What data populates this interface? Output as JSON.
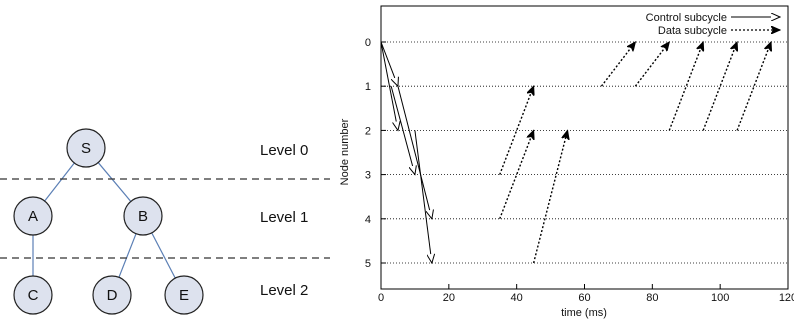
{
  "tree": {
    "nodes": [
      {
        "id": "S",
        "label": "S"
      },
      {
        "id": "A",
        "label": "A"
      },
      {
        "id": "B",
        "label": "B"
      },
      {
        "id": "C",
        "label": "C"
      },
      {
        "id": "D",
        "label": "D"
      },
      {
        "id": "E",
        "label": "E"
      }
    ],
    "edges": [
      [
        "S",
        "A"
      ],
      [
        "S",
        "B"
      ],
      [
        "A",
        "C"
      ],
      [
        "B",
        "D"
      ],
      [
        "B",
        "E"
      ]
    ],
    "levels": [
      "Level 0",
      "Level 1",
      "Level 2"
    ],
    "edge_color": "#5b7fb5"
  },
  "chart_data": {
    "type": "line",
    "xlabel": "time (ms)",
    "ylabel": "Node number",
    "xlim": [
      0,
      120
    ],
    "ylim": [
      0,
      5
    ],
    "y_inverted": true,
    "x_ticks": [
      0,
      20,
      40,
      60,
      80,
      100,
      120
    ],
    "y_ticks": [
      0,
      1,
      2,
      3,
      4,
      5
    ],
    "grid": "horizontal dotted",
    "legend_position": "top-right",
    "series": [
      {
        "name": "Control subcycle",
        "style": "solid",
        "arrows": [
          [
            [
              0,
              0
            ],
            [
              5,
              1
            ]
          ],
          [
            [
              0,
              0
            ],
            [
              5,
              2
            ]
          ],
          [
            [
              3,
              1
            ],
            [
              10,
              3
            ]
          ],
          [
            [
              5,
              1
            ],
            [
              15,
              4
            ]
          ],
          [
            [
              10,
              2
            ],
            [
              15,
              5
            ]
          ]
        ]
      },
      {
        "name": "Data subcycle",
        "style": "dotted",
        "arrows": [
          [
            [
              35,
              3
            ],
            [
              45,
              1
            ]
          ],
          [
            [
              35,
              4
            ],
            [
              45,
              2
            ]
          ],
          [
            [
              45,
              5
            ],
            [
              55,
              2
            ]
          ],
          [
            [
              65,
              1
            ],
            [
              75,
              0
            ]
          ],
          [
            [
              75,
              1
            ],
            [
              85,
              0
            ]
          ],
          [
            [
              85,
              2
            ],
            [
              95,
              0
            ]
          ],
          [
            [
              95,
              2
            ],
            [
              105,
              0
            ]
          ],
          [
            [
              105,
              2
            ],
            [
              115,
              0
            ]
          ]
        ]
      }
    ]
  }
}
